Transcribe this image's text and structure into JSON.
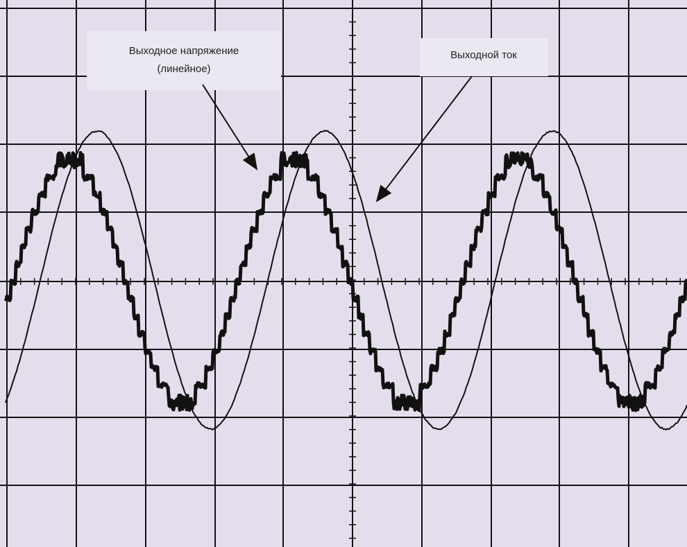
{
  "annotations": [
    {
      "lines": [
        "Выходное напряжение",
        "(линейное)"
      ]
    },
    {
      "lines": [
        "Выходной ток"
      ]
    }
  ]
}
